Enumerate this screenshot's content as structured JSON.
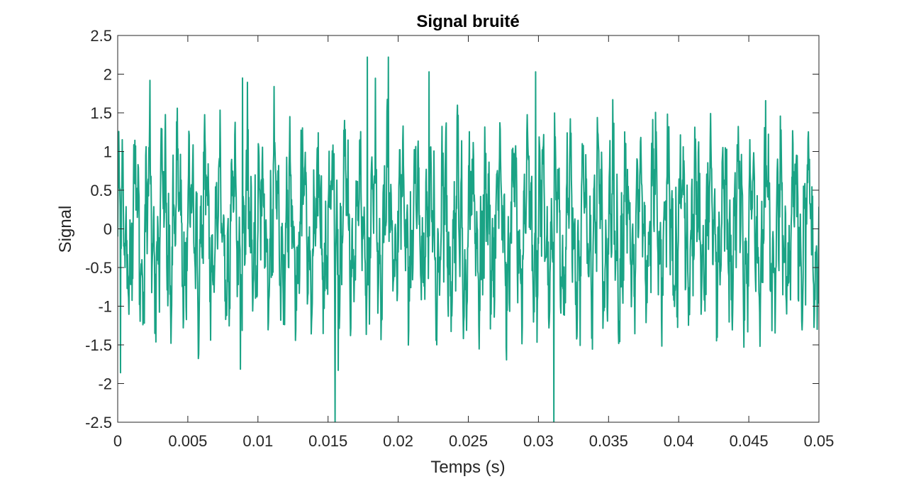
{
  "chart_data": {
    "type": "line",
    "title": "Signal bruité",
    "xlabel": "Temps (s)",
    "ylabel": "Signal",
    "xlim": [
      0,
      0.05
    ],
    "ylim": [
      -2.5,
      2.5
    ],
    "xticks": [
      0,
      0.005,
      0.01,
      0.015,
      0.02,
      0.025,
      0.03,
      0.035,
      0.04,
      0.045,
      0.05
    ],
    "xtick_labels": [
      "0",
      "0.005",
      "0.01",
      "0.015",
      "0.02",
      "0.025",
      "0.03",
      "0.035",
      "0.04",
      "0.045",
      "0.05"
    ],
    "yticks": [
      -2.5,
      -2,
      -1.5,
      -1,
      -0.5,
      0,
      0.5,
      1,
      1.5,
      2,
      2.5
    ],
    "ytick_labels": [
      "-2.5",
      "-2",
      "-1.5",
      "-1",
      "-0.5",
      "0",
      "0.5",
      "1",
      "1.5",
      "2",
      "2.5"
    ],
    "grid": false,
    "box": true,
    "line_color": "#1aa385",
    "series": [
      {
        "description_values_x_range": [
          0,
          0.05
        ],
        "peak_points": [
          {
            "x": 0.0023,
            "y": 1.92
          },
          {
            "x": 0.0089,
            "y": 1.95
          },
          {
            "x": 0.0178,
            "y": 2.22
          },
          {
            "x": 0.0193,
            "y": 2.22
          },
          {
            "x": 0.0222,
            "y": 2.03
          },
          {
            "x": 0.0298,
            "y": 2.03
          },
          {
            "x": 0.0155,
            "y": -2.5
          },
          {
            "x": 0.0311,
            "y": -2.5
          },
          {
            "x": 0.0002,
            "y": -1.86
          }
        ]
      }
    ]
  }
}
